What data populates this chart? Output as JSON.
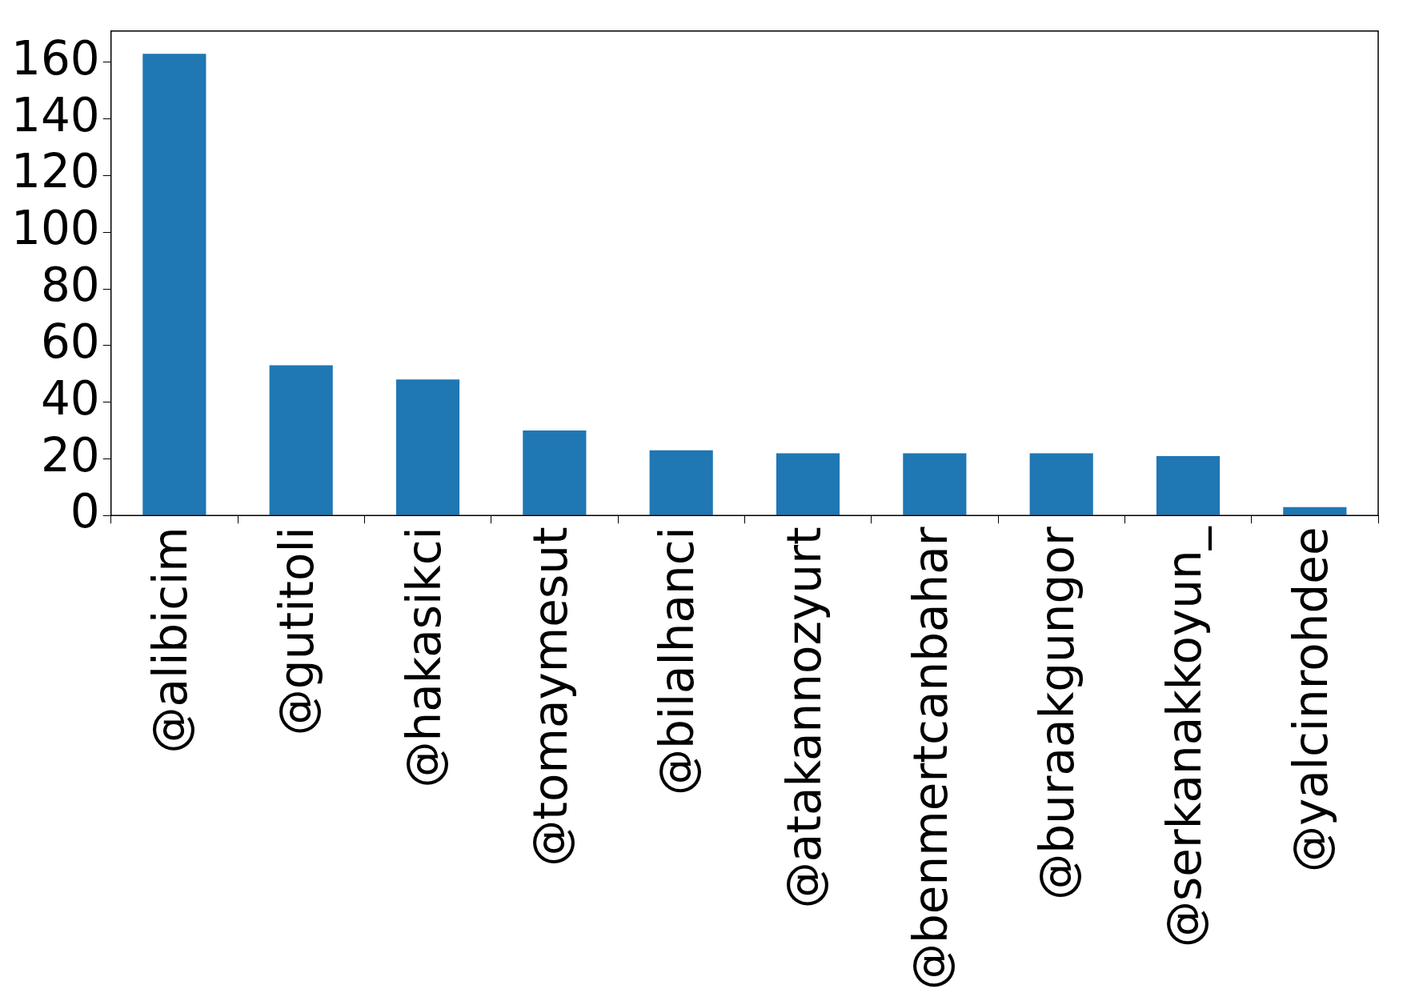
{
  "chart_data": {
    "type": "bar",
    "categories": [
      "@alibicim",
      "@gutitoli",
      "@hakasikci",
      "@tomaymesut",
      "@bilalhanci",
      "@atakannozyurt",
      "@benmertcanbahar",
      "@buraakgungor",
      "@serkanakkoyun_",
      "@yalcinrohdee"
    ],
    "values": [
      163,
      53,
      48,
      30,
      23,
      22,
      22,
      22,
      21,
      3
    ],
    "color": "#1f77b4",
    "ylim": [
      0,
      171
    ],
    "yticks": [
      0,
      20,
      40,
      60,
      80,
      100,
      120,
      140,
      160
    ],
    "grid": false,
    "legend": false
  }
}
